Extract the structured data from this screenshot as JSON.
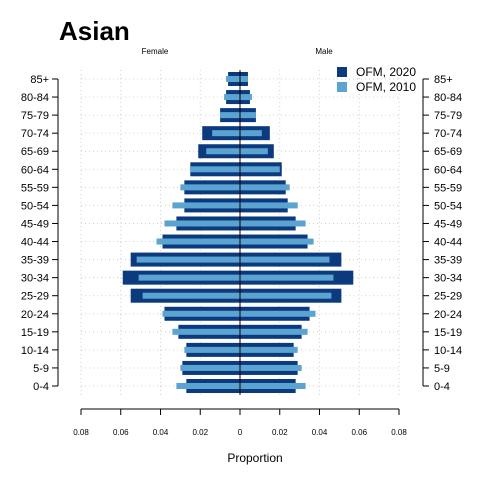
{
  "chart_data": {
    "type": "bar",
    "orientation": "horizontal-pyramid",
    "title": "Asian",
    "left_label": "Female",
    "right_label": "Male",
    "xlabel": "Proportion",
    "xlim": [
      -0.08,
      0.08
    ],
    "x_ticks": [
      -0.08,
      -0.06,
      -0.04,
      -0.02,
      0,
      0.02,
      0.04,
      0.06,
      0.08
    ],
    "x_tick_labels": [
      "0.08",
      "0.06",
      "0.04",
      "0.02",
      "0",
      "0.02",
      "0.04",
      "0.06",
      "0.08"
    ],
    "grid": true,
    "legend_position": "top-right",
    "categories": [
      "0-4",
      "5-9",
      "10-14",
      "15-19",
      "20-24",
      "25-29",
      "30-34",
      "35-39",
      "40-44",
      "45-49",
      "50-54",
      "55-59",
      "60-64",
      "65-69",
      "70-74",
      "75-79",
      "80-84",
      "85+"
    ],
    "series": [
      {
        "name": "OFM, 2020",
        "color": "#0b3a7e",
        "female": [
          0.027,
          0.029,
          0.027,
          0.031,
          0.038,
          0.055,
          0.059,
          0.055,
          0.039,
          0.032,
          0.028,
          0.028,
          0.025,
          0.021,
          0.019,
          0.01,
          0.007,
          0.006
        ],
        "male": [
          0.028,
          0.029,
          0.027,
          0.031,
          0.035,
          0.051,
          0.057,
          0.051,
          0.034,
          0.028,
          0.024,
          0.023,
          0.021,
          0.017,
          0.015,
          0.008,
          0.005,
          0.004
        ]
      },
      {
        "name": "OFM, 2010",
        "color": "#5ba3d0",
        "female": [
          0.032,
          0.03,
          0.028,
          0.034,
          0.039,
          0.049,
          0.051,
          0.052,
          0.042,
          0.038,
          0.034,
          0.03,
          0.025,
          0.017,
          0.014,
          0.01,
          0.008,
          0.007
        ],
        "male": [
          0.033,
          0.031,
          0.029,
          0.034,
          0.038,
          0.046,
          0.047,
          0.045,
          0.037,
          0.033,
          0.029,
          0.025,
          0.02,
          0.014,
          0.011,
          0.008,
          0.006,
          0.004
        ]
      }
    ]
  }
}
